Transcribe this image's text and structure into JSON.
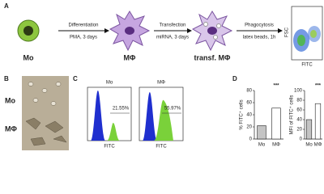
{
  "panel_a": {
    "label": "A",
    "cells": [
      "Mo",
      "MΦ",
      "transf. MΦ"
    ],
    "arrows": [
      {
        "top": "Differentiation",
        "bottom": "PMA, 3 days"
      },
      {
        "top": "Transfection",
        "bottom": "miRNA, 3 days"
      },
      {
        "top": "Phagocytosis",
        "bottom": "latex beads, 1h"
      }
    ],
    "plot_x_label": "FITC",
    "plot_y_label": "FSC"
  },
  "panel_b": {
    "label": "B",
    "rows": [
      "Mo",
      "MΦ"
    ]
  },
  "panel_c": {
    "label": "C",
    "plots": [
      {
        "title": "Mo",
        "gate": "21.55%",
        "x_label": "FITC"
      },
      {
        "title": "MΦ",
        "gate": "55.97%",
        "x_label": "FITC"
      }
    ]
  },
  "panel_d": {
    "label": "D",
    "colors": [
      "#c4c4c4",
      "#ffffff"
    ],
    "charts": [
      {
        "y_label": "% FITC⁺ cells",
        "categories": [
          "Mo",
          "MΦ"
        ],
        "values": [
          22,
          51
        ],
        "ylim": [
          0,
          80
        ],
        "yticks": [
          0,
          20,
          40,
          60,
          80
        ],
        "significance": "***"
      },
      {
        "y_label": "MFI of FITC⁺ cells",
        "categories": [
          "Mo",
          "MΦ"
        ],
        "values": [
          40,
          73
        ],
        "ylim": [
          0,
          100
        ],
        "yticks": [
          0,
          20,
          40,
          60,
          80,
          100
        ],
        "significance": "***"
      }
    ]
  }
}
